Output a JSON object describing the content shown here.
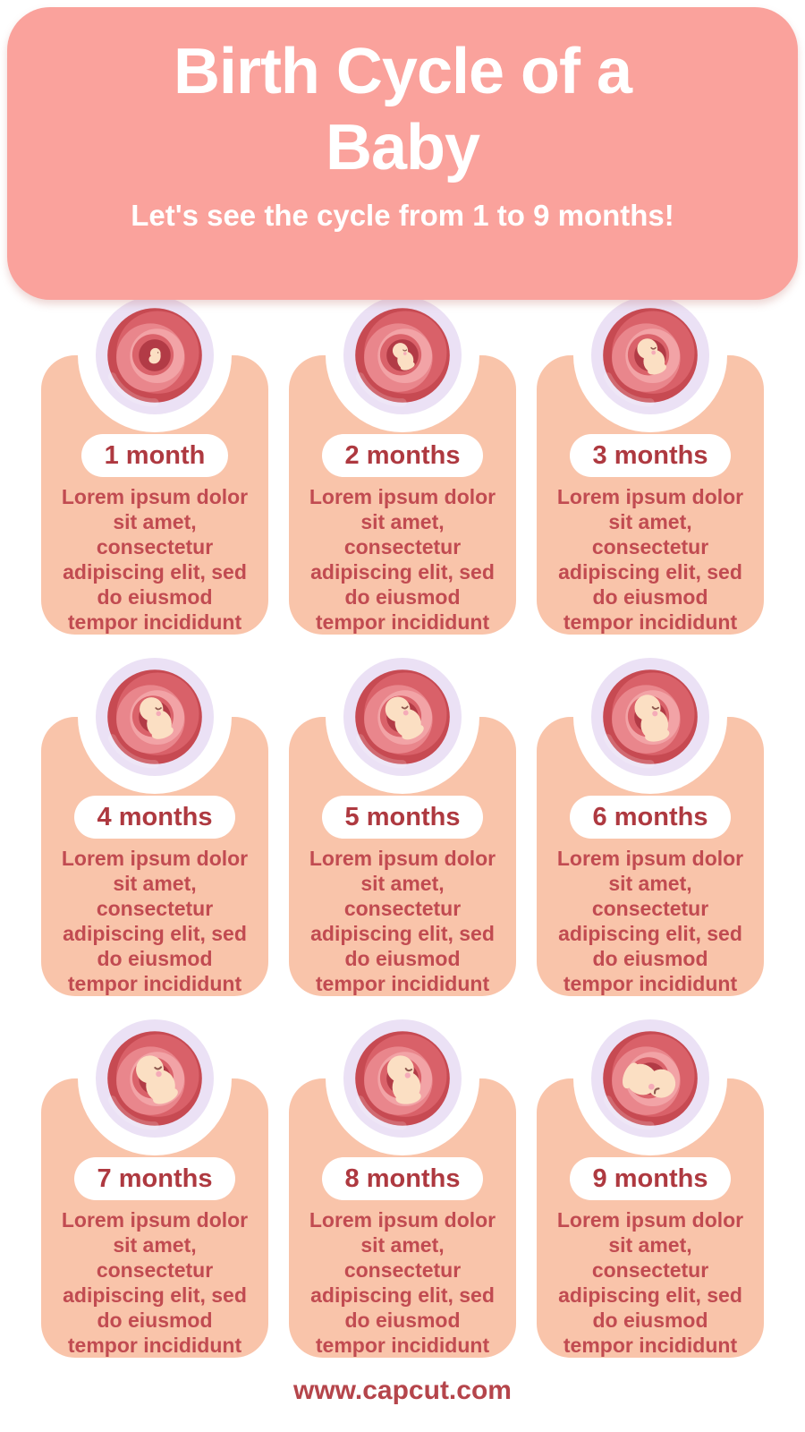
{
  "header": {
    "title": "Birth Cycle of a Baby",
    "title_lines": [
      "Birth Cycle of a",
      "Baby"
    ],
    "subtitle": "Let's see the cycle from 1 to 9 months!"
  },
  "colors": {
    "page-bg": "#ffffff",
    "header-bg": "#faa29c",
    "header-text": "#ffffff",
    "card-bg": "#f9c4aa",
    "label-color": "#ae3940",
    "body-color": "#c14b51",
    "footer-color": "#b5454b",
    "pill-bg": "#ffffff",
    "notch": "#ffffff"
  },
  "badge_colors": {
    "ring": "#ebe1f5",
    "base": "#c74a52",
    "swirl1": "#d96169",
    "swirl2": "#e9868c",
    "swirl3": "#f2a3a6",
    "rim": "#da626a",
    "cavity": "#b23b46",
    "skin": "#fbdfc3",
    "cheek": "#f5abb8",
    "eye": "#8f5a50",
    "sheen": "rgba(255,255,255,0.18)"
  },
  "cards": [
    {
      "label": "1 month",
      "icon": "fetus-month-1-icon",
      "fetus_stage": {
        "variant": "embryo",
        "scale": 0.55,
        "rotation": 0
      },
      "body_lines": [
        "Lorem ipsum dolor",
        "sit amet,",
        "consectetur",
        "adipiscing elit, sed",
        "do eiusmod",
        "tempor incididunt"
      ]
    },
    {
      "label": "2 months",
      "icon": "fetus-month-2-icon",
      "fetus_stage": {
        "variant": "fetus",
        "scale": 0.62,
        "rotation": 0
      },
      "body_lines": [
        "Lorem ipsum dolor",
        "sit amet,",
        "consectetur",
        "adipiscing elit, sed",
        "do eiusmod",
        "tempor incididunt"
      ]
    },
    {
      "label": "3 months",
      "icon": "fetus-month-3-icon",
      "fetus_stage": {
        "variant": "fetus",
        "scale": 0.82,
        "rotation": 0
      },
      "body_lines": [
        "Lorem ipsum dolor",
        "sit amet,",
        "consectetur",
        "adipiscing elit, sed",
        "do eiusmod",
        "tempor incididunt"
      ]
    },
    {
      "label": "4 months",
      "icon": "fetus-month-4-icon",
      "fetus_stage": {
        "variant": "fetus",
        "scale": 0.95,
        "rotation": 0
      },
      "body_lines": [
        "Lorem ipsum dolor",
        "sit amet,",
        "consectetur",
        "adipiscing elit, sed",
        "do eiusmod",
        "tempor incididunt"
      ]
    },
    {
      "label": "5 months",
      "icon": "fetus-month-5-icon",
      "fetus_stage": {
        "variant": "fetus",
        "scale": 1.0,
        "rotation": -8
      },
      "body_lines": [
        "Lorem ipsum dolor",
        "sit amet,",
        "consectetur",
        "adipiscing elit, sed",
        "do eiusmod",
        "tempor incididunt"
      ]
    },
    {
      "label": "6 months",
      "icon": "fetus-month-6-icon",
      "fetus_stage": {
        "variant": "fetus",
        "scale": 1.05,
        "rotation": 6
      },
      "body_lines": [
        "Lorem ipsum dolor",
        "sit amet,",
        "consectetur",
        "adipiscing elit, sed",
        "do eiusmod",
        "tempor incididunt"
      ]
    },
    {
      "label": "7 months",
      "icon": "fetus-month-7-icon",
      "fetus_stage": {
        "variant": "fetus",
        "scale": 1.12,
        "rotation": -5
      },
      "body_lines": [
        "Lorem ipsum dolor",
        "sit amet,",
        "consectetur",
        "adipiscing elit, sed",
        "do eiusmod",
        "tempor incididunt"
      ]
    },
    {
      "label": "8 months",
      "icon": "fetus-month-8-icon",
      "fetus_stage": {
        "variant": "fetus",
        "scale": 1.08,
        "rotation": 10
      },
      "body_lines": [
        "Lorem ipsum dolor",
        "sit amet,",
        "consectetur",
        "adipiscing elit, sed",
        "do eiusmod",
        "tempor incididunt"
      ]
    },
    {
      "label": "9 months",
      "icon": "fetus-month-9-icon",
      "fetus_stage": {
        "variant": "fetus",
        "scale": 1.15,
        "rotation": 130
      },
      "body_lines": [
        "Lorem ipsum dolor",
        "sit amet,",
        "consectetur",
        "adipiscing elit, sed",
        "do eiusmod",
        "tempor incididunt"
      ]
    }
  ],
  "footer": {
    "text": "www.capcut.com"
  }
}
